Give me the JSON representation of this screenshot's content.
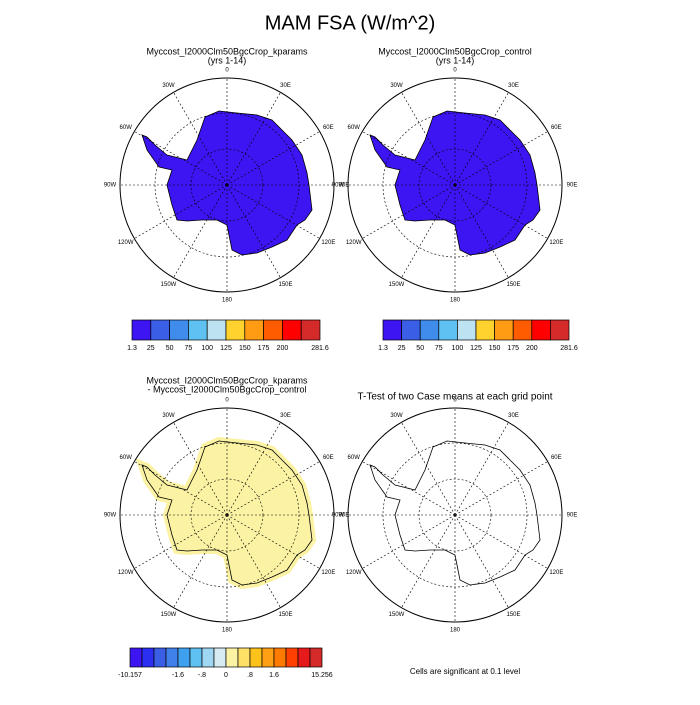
{
  "title": "MAM FSA (W/m^2)",
  "longitude_labels": [
    "0",
    "30E",
    "60E",
    "90E",
    "120E",
    "150E",
    "180",
    "150W",
    "120W",
    "90W",
    "60W",
    "30W"
  ],
  "panels": [
    {
      "title": [
        "Myccost_I2000Clm50BgcCrop_kparams",
        "(yrs 1-14)"
      ],
      "fill": "#3d14f2"
    },
    {
      "title": [
        "Myccost_I2000Clm50BgcCrop_control",
        "(yrs 1-14)"
      ],
      "fill": "#3d14f2"
    },
    {
      "title": [
        "Myccost_I2000Clm50BgcCrop_kparams",
        " - Myccost_I2000Clm50BgcCrop_control"
      ],
      "fill": "#fbf3a3"
    },
    {
      "title": [
        "T-Test of two Case means at each grid point"
      ],
      "fill": "none"
    }
  ],
  "colorbars": [
    {
      "colors": [
        "#3d14f2",
        "#3a5ee6",
        "#3f8cec",
        "#5ec1f2",
        "#bde2f2",
        "#ffd22e",
        "#ff9c14",
        "#ff5c00",
        "#ff0000",
        "#d42a2a"
      ],
      "labels": [
        "1.3",
        "25",
        "50",
        "75",
        "100",
        "125",
        "150",
        "175",
        "200",
        "281.6"
      ]
    },
    {
      "colors": [
        "#3d14f2",
        "#3a5ee6",
        "#3f8cec",
        "#5ec1f2",
        "#bde2f2",
        "#ffd22e",
        "#ff9c14",
        "#ff5c00",
        "#ff0000",
        "#d42a2a"
      ],
      "labels": [
        "1.3",
        "25",
        "50",
        "75",
        "100",
        "125",
        "150",
        "175",
        "200",
        "281.6"
      ]
    },
    {
      "colors": [
        "#3d14f2",
        "#2a2ff0",
        "#3a5ee6",
        "#3f80ea",
        "#3fa0f0",
        "#5ec1f2",
        "#9fd6f2",
        "#d6ecf2",
        "#fbf3a3",
        "#ffe066",
        "#ffc21a",
        "#ffa014",
        "#ff7a00",
        "#ff4000",
        "#e61a1a",
        "#d42a2a"
      ],
      "labels": [
        "-10.157",
        "-1.6",
        "-.8",
        "0",
        ".8",
        "1.6",
        "15.256"
      ]
    }
  ],
  "footer": "Cells are significant at 0.1 level"
}
